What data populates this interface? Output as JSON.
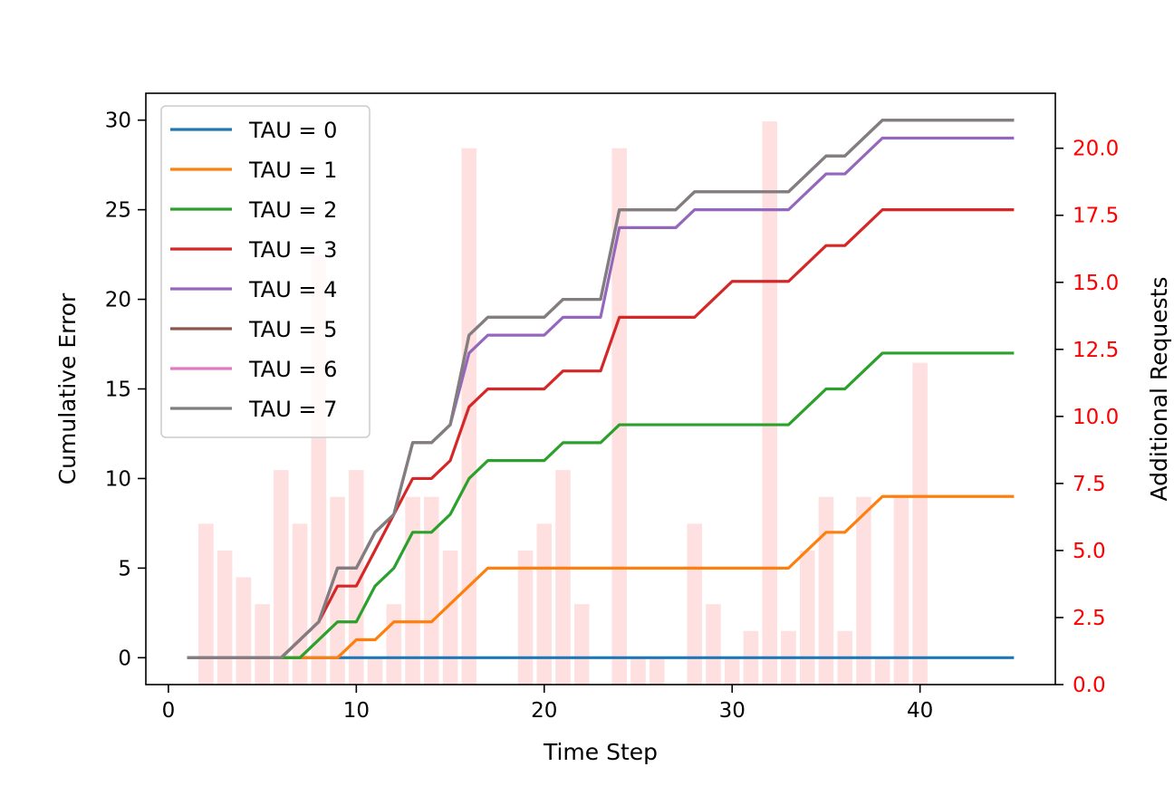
{
  "chart_data": {
    "type": "line",
    "xlabel": "Time Step",
    "ylabel": "Cumulative Error",
    "y2label": "Additional Requests",
    "xlim": [
      -1.2,
      47.2
    ],
    "ylim": [
      -1.5,
      31.5
    ],
    "y2lim": [
      0,
      22.05
    ],
    "xticks": [
      0,
      10,
      20,
      30,
      40
    ],
    "yticks": [
      0,
      5,
      10,
      15,
      20,
      25,
      30
    ],
    "y2ticks": [
      0,
      2.5,
      5,
      7.5,
      10,
      12.5,
      15,
      17.5,
      20
    ],
    "y2tick_labels": [
      "0.0",
      "2.5",
      "5.0",
      "7.5",
      "10.0",
      "12.5",
      "15.0",
      "17.5",
      "20.0"
    ],
    "y2_color": "#ff0000",
    "legend_position": "upper-left",
    "grid": false,
    "x": [
      1,
      2,
      3,
      4,
      5,
      6,
      7,
      8,
      9,
      10,
      11,
      12,
      13,
      14,
      15,
      16,
      17,
      18,
      19,
      20,
      21,
      22,
      23,
      24,
      25,
      26,
      27,
      28,
      29,
      30,
      31,
      32,
      33,
      34,
      35,
      36,
      37,
      38,
      39,
      40,
      41,
      42,
      43,
      44,
      45
    ],
    "series": [
      {
        "name": "TAU = 0",
        "color": "#1f77b4",
        "values": [
          0,
          0,
          0,
          0,
          0,
          0,
          0,
          0,
          0,
          0,
          0,
          0,
          0,
          0,
          0,
          0,
          0,
          0,
          0,
          0,
          0,
          0,
          0,
          0,
          0,
          0,
          0,
          0,
          0,
          0,
          0,
          0,
          0,
          0,
          0,
          0,
          0,
          0,
          0,
          0,
          0,
          0,
          0,
          0,
          0
        ]
      },
      {
        "name": "TAU = 1",
        "color": "#ff7f0e",
        "values": [
          0,
          0,
          0,
          0,
          0,
          0,
          0,
          0,
          0,
          1,
          1,
          2,
          2,
          2,
          3,
          4,
          5,
          5,
          5,
          5,
          5,
          5,
          5,
          5,
          5,
          5,
          5,
          5,
          5,
          5,
          5,
          5,
          5,
          6,
          7,
          7,
          8,
          9,
          9,
          9,
          9,
          9,
          9,
          9,
          9
        ]
      },
      {
        "name": "TAU = 2",
        "color": "#2ca02c",
        "values": [
          0,
          0,
          0,
          0,
          0,
          0,
          0,
          1,
          2,
          2,
          4,
          5,
          7,
          7,
          8,
          10,
          11,
          11,
          11,
          11,
          12,
          12,
          12,
          13,
          13,
          13,
          13,
          13,
          13,
          13,
          13,
          13,
          13,
          14,
          15,
          15,
          16,
          17,
          17,
          17,
          17,
          17,
          17,
          17,
          17
        ]
      },
      {
        "name": "TAU = 3",
        "color": "#d62728",
        "values": [
          0,
          0,
          0,
          0,
          0,
          0,
          1,
          2,
          4,
          4,
          6,
          8,
          10,
          10,
          11,
          14,
          15,
          15,
          15,
          15,
          16,
          16,
          16,
          19,
          19,
          19,
          19,
          19,
          20,
          21,
          21,
          21,
          21,
          22,
          23,
          23,
          24,
          25,
          25,
          25,
          25,
          25,
          25,
          25,
          25
        ]
      },
      {
        "name": "TAU = 4",
        "color": "#9467bd",
        "values": [
          0,
          0,
          0,
          0,
          0,
          0,
          1,
          2,
          5,
          5,
          7,
          8,
          12,
          12,
          13,
          17,
          18,
          18,
          18,
          18,
          19,
          19,
          19,
          24,
          24,
          24,
          24,
          25,
          25,
          25,
          25,
          25,
          25,
          26,
          27,
          27,
          28,
          29,
          29,
          29,
          29,
          29,
          29,
          29,
          29
        ]
      },
      {
        "name": "TAU = 5",
        "color": "#8c564b",
        "values": [
          0,
          0,
          0,
          0,
          0,
          0,
          1,
          2,
          5,
          5,
          7,
          8,
          12,
          12,
          13,
          18,
          19,
          19,
          19,
          19,
          20,
          20,
          20,
          25,
          25,
          25,
          25,
          26,
          26,
          26,
          26,
          26,
          26,
          27,
          28,
          28,
          29,
          30,
          30,
          30,
          30,
          30,
          30,
          30,
          30
        ]
      },
      {
        "name": "TAU = 6",
        "color": "#e377c2",
        "values": [
          0,
          0,
          0,
          0,
          0,
          0,
          1,
          2,
          5,
          5,
          7,
          8,
          12,
          12,
          13,
          18,
          19,
          19,
          19,
          19,
          20,
          20,
          20,
          25,
          25,
          25,
          25,
          26,
          26,
          26,
          26,
          26,
          26,
          27,
          28,
          28,
          29,
          30,
          30,
          30,
          30,
          30,
          30,
          30,
          30
        ]
      },
      {
        "name": "TAU = 7",
        "color": "#7f7f7f",
        "values": [
          0,
          0,
          0,
          0,
          0,
          0,
          1,
          2,
          5,
          5,
          7,
          8,
          12,
          12,
          13,
          18,
          19,
          19,
          19,
          19,
          20,
          20,
          20,
          25,
          25,
          25,
          25,
          26,
          26,
          26,
          26,
          26,
          26,
          27,
          28,
          28,
          29,
          30,
          30,
          30,
          30,
          30,
          30,
          30,
          30
        ]
      }
    ],
    "bars": {
      "axis": "right",
      "color": "#ffe0e0",
      "width": 0.8,
      "x": [
        2,
        3,
        4,
        5,
        6,
        7,
        8,
        9,
        10,
        11,
        12,
        13,
        14,
        15,
        16,
        19,
        20,
        21,
        22,
        24,
        25,
        26,
        28,
        29,
        30,
        31,
        32,
        33,
        34,
        35,
        36,
        37,
        38,
        39,
        40
      ],
      "values": [
        6,
        5,
        4,
        3,
        8,
        6,
        16,
        7,
        8,
        1,
        3,
        7,
        7,
        5,
        20,
        5,
        6,
        8,
        3,
        20,
        1,
        1,
        6,
        3,
        1,
        2,
        21,
        2,
        5,
        7,
        2,
        7,
        1,
        7,
        12
      ]
    }
  }
}
